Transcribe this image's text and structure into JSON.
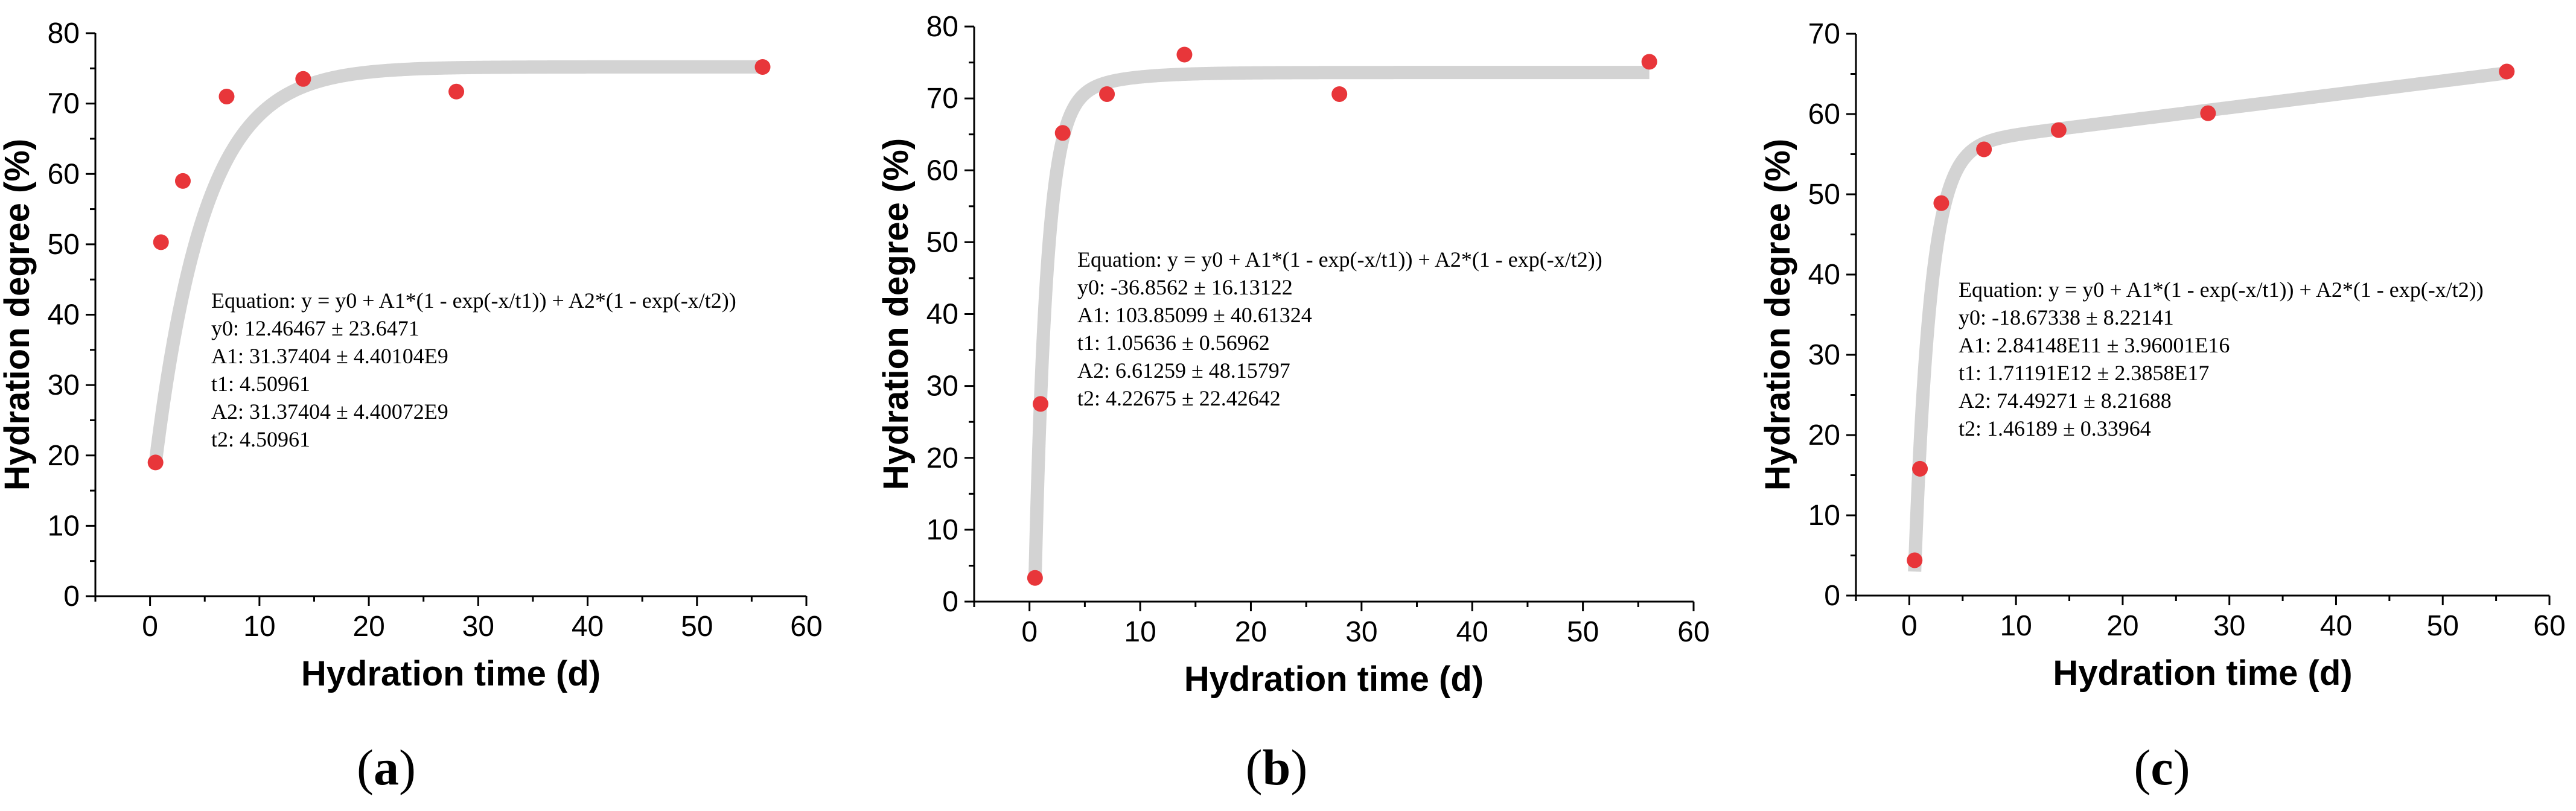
{
  "chart_data": [
    {
      "type": "scatter",
      "panel_label": "a",
      "xlabel": "Hydration time (d)",
      "ylabel": "Hydration degree (%)",
      "xlim": [
        -5,
        60
      ],
      "ylim": [
        0,
        80
      ],
      "xticks": [
        0,
        10,
        20,
        30,
        40,
        50,
        60
      ],
      "yticks": [
        0,
        10,
        20,
        30,
        40,
        50,
        60,
        70,
        80
      ],
      "points": {
        "x": [
          0.5,
          1,
          3,
          7,
          14,
          28,
          56
        ],
        "y": [
          19,
          50.3,
          59,
          71,
          73.5,
          71.7,
          75.2
        ]
      },
      "fit": {
        "y0": 12.46467,
        "A1": 31.37404,
        "t1": 4.50961,
        "A2": 31.37404,
        "t2": 4.50961,
        "x_start": 0.5,
        "x_end": 56
      },
      "equation_lines": [
        "Equation: y = y0 + A1*(1 - exp(-x/t1)) + A2*(1 - exp(-x/t2))",
        "y0: 12.46467 ± 23.6471",
        "A1: 31.37404 ± 4.40104E9",
        "t1: 4.50961",
        "A2: 31.37404 ± 4.40072E9",
        "t2: 4.50961"
      ]
    },
    {
      "type": "scatter",
      "panel_label": "b",
      "xlabel": "Hydration time (d)",
      "ylabel": "Hydration degree (%)",
      "xlim": [
        -5,
        60
      ],
      "ylim": [
        0,
        80
      ],
      "xticks": [
        0,
        10,
        20,
        30,
        40,
        50,
        60
      ],
      "yticks": [
        0,
        10,
        20,
        30,
        40,
        50,
        60,
        70,
        80
      ],
      "points": {
        "x": [
          0.5,
          1,
          3,
          7,
          14,
          28,
          56
        ],
        "y": [
          3.3,
          27.5,
          65.2,
          70.6,
          76.1,
          70.6,
          75.1
        ]
      },
      "fit": {
        "y0": -36.8562,
        "A1": 103.85099,
        "t1": 1.05636,
        "A2": 6.61259,
        "t2": 4.22675,
        "x_start": 0.5,
        "x_end": 56
      },
      "equation_lines": [
        "Equation: y = y0 + A1*(1 - exp(-x/t1)) + A2*(1 - exp(-x/t2))",
        "y0: -36.8562 ± 16.13122",
        "A1: 103.85099 ± 40.61324",
        "t1: 1.05636 ± 0.56962",
        "A2: 6.61259 ± 48.15797",
        "t2: 4.22675 ± 22.42642"
      ]
    },
    {
      "type": "scatter",
      "panel_label": "c",
      "xlabel": "Hydration time (d)",
      "ylabel": "Hydration degree (%)",
      "xlim": [
        -5,
        60
      ],
      "ylim": [
        0,
        70
      ],
      "xticks": [
        0,
        10,
        20,
        30,
        40,
        50,
        60
      ],
      "yticks": [
        0,
        10,
        20,
        30,
        40,
        50,
        60,
        70
      ],
      "points": {
        "x": [
          0.5,
          1,
          3,
          7,
          14,
          28,
          56
        ],
        "y": [
          4.4,
          15.8,
          48.9,
          55.6,
          58,
          60.1,
          65.3
        ]
      },
      "fit": {
        "y0": -18.67338,
        "A1": 284148000000,
        "t1": 1711910000000,
        "A2": 74.49271,
        "t2": 1.46189,
        "x_start": 0.5,
        "x_end": 56
      },
      "equation_lines": [
        "Equation: y = y0 + A1*(1 - exp(-x/t1)) + A2*(1 - exp(-x/t2))",
        "y0: -18.67338 ± 8.22141",
        "A1: 2.84148E11 ± 3.96001E16",
        "t1: 1.71191E12 ± 2.3858E17",
        "A2: 74.49271 ± 8.21688",
        "t2: 1.46189 ± 0.33964"
      ]
    }
  ]
}
